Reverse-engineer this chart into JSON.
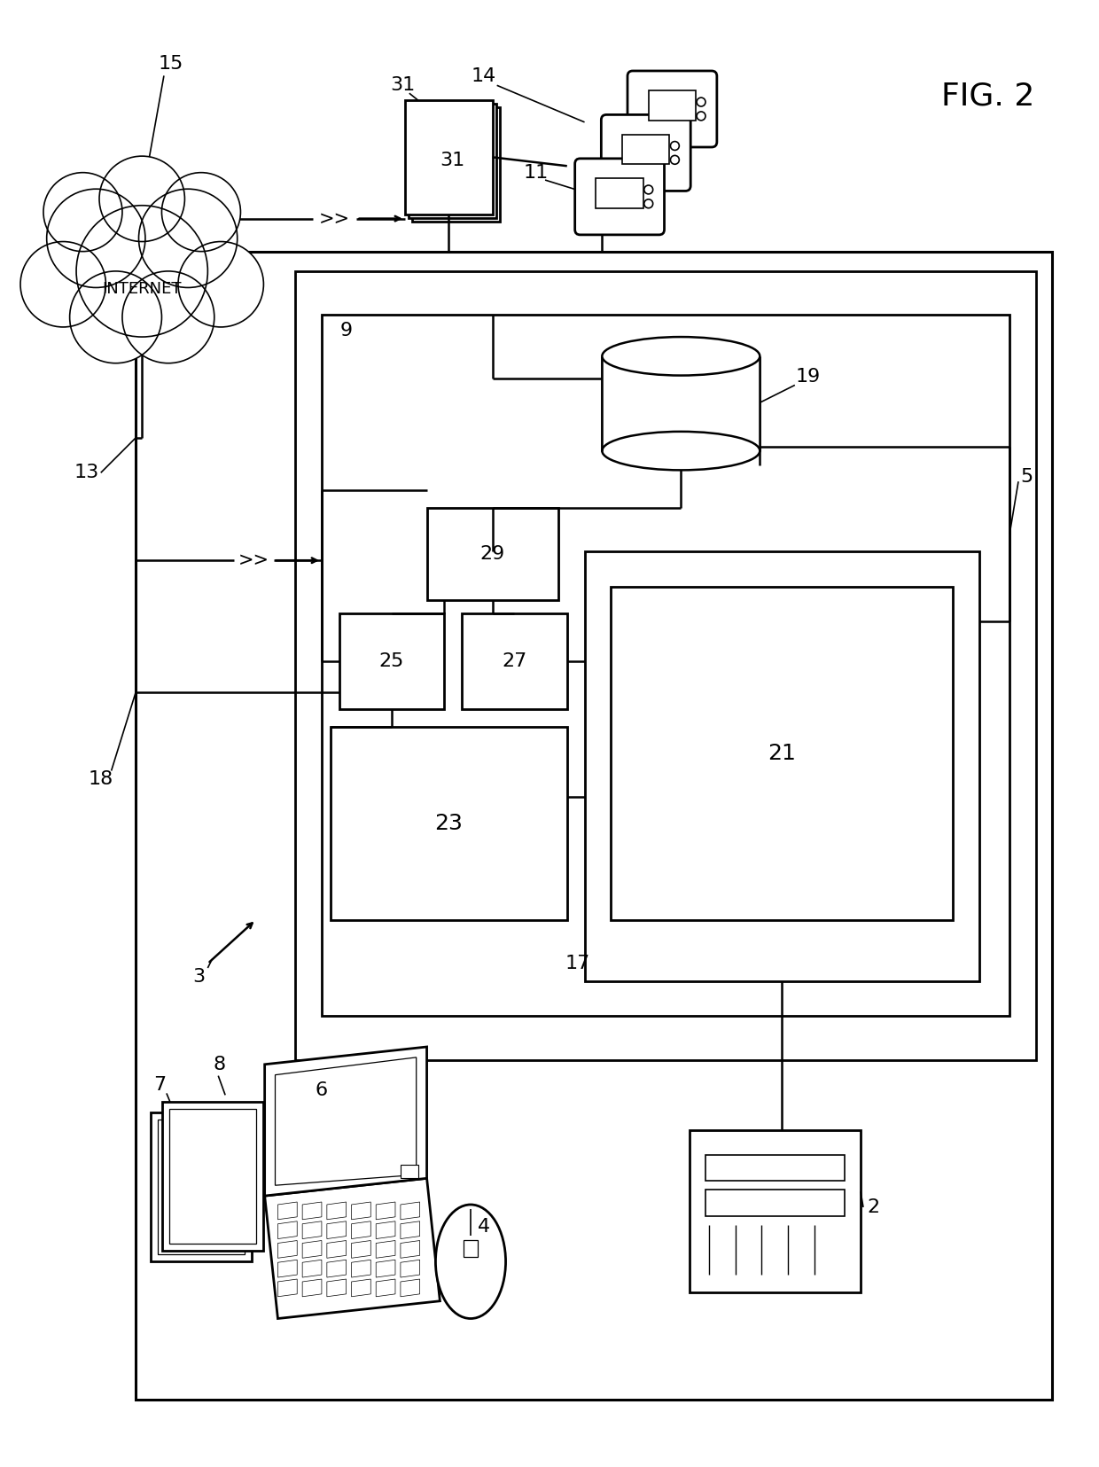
{
  "bg_color": "#ffffff",
  "fig_width": 12.4,
  "fig_height": 16.55
}
